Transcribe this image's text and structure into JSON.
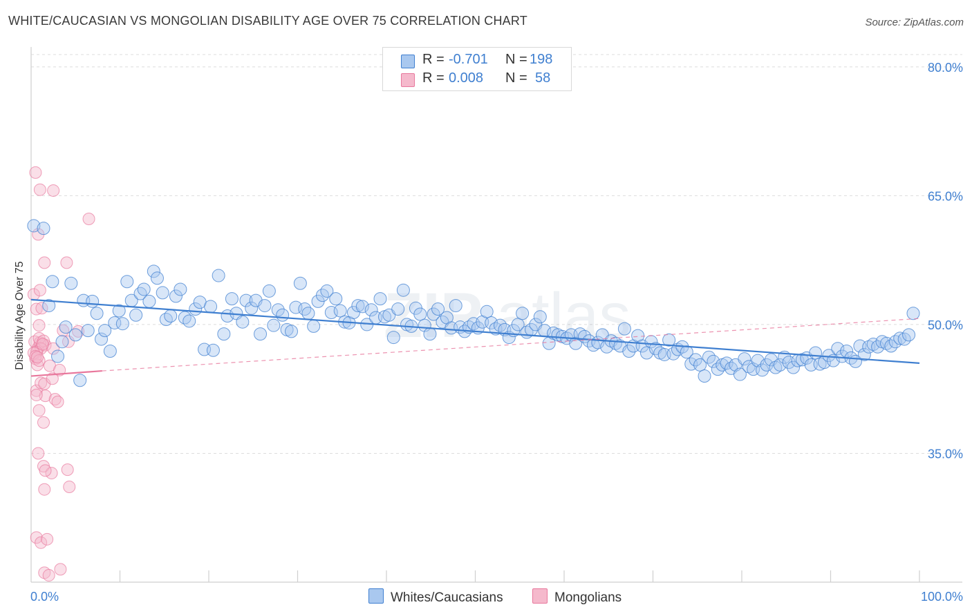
{
  "title": "WHITE/CAUCASIAN VS MONGOLIAN DISABILITY AGE OVER 75 CORRELATION CHART",
  "source": "Source: ZipAtlas.com",
  "colors": {
    "blue": "#3f7fd0",
    "blue_fill": "#a9c8ef",
    "pink": "#e8779c",
    "pink_fill": "#f5b9cc",
    "grid": "#dcdcdc"
  },
  "legend": {
    "rows": [
      {
        "r_label": "R =",
        "r_value": "-0.701",
        "n_label": "N =",
        "n_value": "198"
      },
      {
        "r_label": "R =",
        "r_value": "0.008",
        "n_label": "N =",
        "n_value": "58"
      }
    ]
  },
  "bottom_legend": {
    "series1": "Whites/Caucasians",
    "series2": "Mongolians"
  },
  "chart_data": {
    "type": "scatter",
    "ylabel": "Disability Age Over 75",
    "xlim": [
      0,
      100
    ],
    "ylim": [
      20,
      82
    ],
    "x_ticks": [
      "0.0%",
      "100.0%"
    ],
    "y_ticks": [
      {
        "value": 80,
        "label": "80.0%"
      },
      {
        "value": 65,
        "label": "65.0%"
      },
      {
        "value": 50,
        "label": "50.0%"
      },
      {
        "value": 35,
        "label": "35.0%"
      }
    ],
    "grid": "horizontal dashed",
    "series": [
      {
        "name": "Whites/Caucasians",
        "points": [
          [
            0.3,
            61.5
          ],
          [
            1.4,
            61.2
          ],
          [
            2.0,
            52.2
          ],
          [
            2.4,
            55.0
          ],
          [
            3.0,
            46.3
          ],
          [
            3.5,
            48.0
          ],
          [
            3.9,
            49.7
          ],
          [
            4.5,
            54.8
          ],
          [
            5.0,
            48.8
          ],
          [
            5.5,
            43.5
          ],
          [
            5.9,
            52.8
          ],
          [
            6.4,
            49.3
          ],
          [
            6.9,
            52.7
          ],
          [
            7.4,
            51.3
          ],
          [
            7.9,
            48.3
          ],
          [
            8.3,
            49.3
          ],
          [
            8.9,
            46.9
          ],
          [
            9.4,
            50.2
          ],
          [
            9.9,
            51.6
          ],
          [
            10.3,
            50.1
          ],
          [
            10.8,
            55.0
          ],
          [
            11.3,
            52.8
          ],
          [
            11.8,
            51.1
          ],
          [
            12.3,
            53.6
          ],
          [
            12.7,
            54.1
          ],
          [
            13.3,
            52.7
          ],
          [
            13.8,
            56.2
          ],
          [
            14.2,
            55.4
          ],
          [
            14.8,
            53.7
          ],
          [
            15.2,
            50.6
          ],
          [
            15.7,
            51.0
          ],
          [
            16.3,
            53.3
          ],
          [
            16.8,
            54.1
          ],
          [
            17.3,
            50.8
          ],
          [
            17.8,
            50.4
          ],
          [
            18.5,
            51.8
          ],
          [
            19.0,
            52.6
          ],
          [
            19.5,
            47.1
          ],
          [
            20.2,
            52.1
          ],
          [
            20.5,
            47.0
          ],
          [
            21.1,
            55.7
          ],
          [
            21.7,
            48.9
          ],
          [
            22.1,
            51.0
          ],
          [
            22.6,
            53.0
          ],
          [
            23.1,
            51.3
          ],
          [
            23.8,
            50.3
          ],
          [
            24.2,
            52.8
          ],
          [
            24.8,
            51.9
          ],
          [
            25.3,
            52.8
          ],
          [
            25.8,
            48.9
          ],
          [
            26.3,
            52.2
          ],
          [
            26.8,
            53.9
          ],
          [
            27.3,
            49.9
          ],
          [
            27.8,
            51.7
          ],
          [
            28.3,
            51.1
          ],
          [
            28.8,
            49.4
          ],
          [
            29.3,
            49.2
          ],
          [
            29.8,
            52.0
          ],
          [
            30.3,
            54.8
          ],
          [
            30.8,
            51.8
          ],
          [
            31.2,
            51.3
          ],
          [
            31.8,
            49.8
          ],
          [
            32.3,
            52.7
          ],
          [
            32.8,
            53.4
          ],
          [
            33.3,
            53.9
          ],
          [
            33.8,
            51.4
          ],
          [
            34.3,
            53.0
          ],
          [
            34.8,
            51.6
          ],
          [
            35.3,
            50.3
          ],
          [
            35.8,
            50.2
          ],
          [
            36.3,
            51.4
          ],
          [
            36.8,
            52.2
          ],
          [
            37.3,
            52.1
          ],
          [
            37.8,
            50.0
          ],
          [
            38.3,
            51.7
          ],
          [
            38.8,
            50.8
          ],
          [
            39.3,
            53.0
          ],
          [
            39.8,
            50.9
          ],
          [
            40.3,
            51.1
          ],
          [
            40.8,
            48.5
          ],
          [
            41.3,
            51.8
          ],
          [
            41.9,
            54.0
          ],
          [
            42.3,
            50.0
          ],
          [
            42.8,
            49.8
          ],
          [
            43.3,
            51.9
          ],
          [
            43.8,
            51.2
          ],
          [
            44.3,
            49.9
          ],
          [
            44.9,
            48.9
          ],
          [
            45.3,
            51.2
          ],
          [
            45.8,
            51.8
          ],
          [
            46.3,
            50.3
          ],
          [
            46.8,
            50.8
          ],
          [
            47.3,
            49.6
          ],
          [
            47.8,
            52.2
          ],
          [
            48.3,
            49.7
          ],
          [
            48.8,
            49.2
          ],
          [
            49.3,
            49.7
          ],
          [
            49.8,
            50.1
          ],
          [
            50.3,
            49.6
          ],
          [
            50.8,
            50.3
          ],
          [
            51.3,
            51.5
          ],
          [
            51.8,
            50.2
          ],
          [
            52.3,
            49.5
          ],
          [
            52.8,
            49.9
          ],
          [
            53.3,
            49.4
          ],
          [
            53.8,
            48.5
          ],
          [
            54.3,
            49.3
          ],
          [
            54.8,
            50.0
          ],
          [
            55.3,
            51.3
          ],
          [
            55.8,
            49.1
          ],
          [
            56.3,
            49.4
          ],
          [
            56.8,
            50.0
          ],
          [
            57.3,
            50.9
          ],
          [
            57.8,
            49.3
          ],
          [
            58.3,
            47.8
          ],
          [
            58.8,
            49.0
          ],
          [
            59.3,
            48.8
          ],
          [
            59.8,
            48.6
          ],
          [
            60.3,
            48.4
          ],
          [
            60.8,
            48.8
          ],
          [
            61.3,
            47.8
          ],
          [
            61.8,
            48.9
          ],
          [
            62.3,
            48.6
          ],
          [
            62.8,
            48.1
          ],
          [
            63.3,
            47.6
          ],
          [
            63.8,
            47.9
          ],
          [
            64.3,
            48.8
          ],
          [
            64.8,
            47.4
          ],
          [
            65.3,
            48.1
          ],
          [
            65.8,
            47.8
          ],
          [
            66.3,
            47.5
          ],
          [
            66.8,
            49.5
          ],
          [
            67.3,
            46.9
          ],
          [
            67.8,
            47.5
          ],
          [
            68.3,
            48.7
          ],
          [
            68.8,
            47.5
          ],
          [
            69.3,
            46.7
          ],
          [
            69.8,
            48.0
          ],
          [
            70.3,
            47.2
          ],
          [
            70.8,
            46.7
          ],
          [
            71.3,
            46.5
          ],
          [
            71.8,
            48.2
          ],
          [
            72.3,
            46.6
          ],
          [
            72.8,
            47.1
          ],
          [
            73.3,
            47.4
          ],
          [
            73.8,
            46.8
          ],
          [
            74.3,
            45.4
          ],
          [
            74.8,
            45.9
          ],
          [
            75.3,
            45.3
          ],
          [
            75.8,
            44.0
          ],
          [
            76.3,
            46.2
          ],
          [
            76.8,
            45.7
          ],
          [
            77.3,
            44.8
          ],
          [
            77.8,
            45.3
          ],
          [
            78.3,
            45.5
          ],
          [
            78.8,
            44.9
          ],
          [
            79.3,
            45.3
          ],
          [
            79.8,
            44.2
          ],
          [
            80.3,
            46.0
          ],
          [
            80.8,
            45.1
          ],
          [
            81.3,
            44.8
          ],
          [
            81.8,
            45.8
          ],
          [
            82.3,
            44.7
          ],
          [
            82.8,
            45.3
          ],
          [
            83.3,
            45.9
          ],
          [
            83.8,
            45.0
          ],
          [
            84.3,
            45.3
          ],
          [
            84.8,
            46.2
          ],
          [
            85.3,
            45.6
          ],
          [
            85.8,
            45.0
          ],
          [
            86.3,
            45.8
          ],
          [
            86.8,
            45.9
          ],
          [
            87.3,
            46.1
          ],
          [
            87.8,
            45.3
          ],
          [
            88.3,
            46.7
          ],
          [
            88.8,
            45.4
          ],
          [
            89.3,
            45.6
          ],
          [
            89.8,
            46.4
          ],
          [
            90.3,
            45.8
          ],
          [
            90.8,
            47.2
          ],
          [
            91.3,
            46.3
          ],
          [
            91.8,
            46.9
          ],
          [
            92.3,
            46.1
          ],
          [
            92.8,
            45.7
          ],
          [
            93.3,
            47.5
          ],
          [
            93.8,
            46.5
          ],
          [
            94.3,
            47.4
          ],
          [
            94.8,
            47.7
          ],
          [
            95.3,
            47.4
          ],
          [
            95.8,
            48.0
          ],
          [
            96.3,
            47.8
          ],
          [
            96.8,
            47.5
          ],
          [
            97.3,
            48.0
          ],
          [
            97.8,
            48.4
          ],
          [
            98.3,
            48.3
          ],
          [
            98.8,
            48.8
          ],
          [
            99.3,
            51.3
          ]
        ],
        "trend": {
          "x": [
            0,
            100
          ],
          "y": [
            52.9,
            45.5
          ]
        }
      },
      {
        "name": "Mongolians",
        "points": [
          [
            0.5,
            67.7
          ],
          [
            1.0,
            65.7
          ],
          [
            2.5,
            65.6
          ],
          [
            6.5,
            62.3
          ],
          [
            0.8,
            60.5
          ],
          [
            0.3,
            53.5
          ],
          [
            1.5,
            57.2
          ],
          [
            4.0,
            57.2
          ],
          [
            0.6,
            51.8
          ],
          [
            1.2,
            51.9
          ],
          [
            1.0,
            54.0
          ],
          [
            0.9,
            49.9
          ],
          [
            0.4,
            48.0
          ],
          [
            0.7,
            47.0
          ],
          [
            0.5,
            46.0
          ],
          [
            0.8,
            47.3
          ],
          [
            1.2,
            47.8
          ],
          [
            1.6,
            47.6
          ],
          [
            1.0,
            47.9
          ],
          [
            0.9,
            48.4
          ],
          [
            1.4,
            48.1
          ],
          [
            1.1,
            47.2
          ],
          [
            0.6,
            46.8
          ],
          [
            0.3,
            46.7
          ],
          [
            0.5,
            46.3
          ],
          [
            0.7,
            45.3
          ],
          [
            0.9,
            45.8
          ],
          [
            1.3,
            47.7
          ],
          [
            0.6,
            42.3
          ],
          [
            1.1,
            43.2
          ],
          [
            1.6,
            41.7
          ],
          [
            2.1,
            45.2
          ],
          [
            2.5,
            47.2
          ],
          [
            3.2,
            44.7
          ],
          [
            3.6,
            49.3
          ],
          [
            4.2,
            48.0
          ],
          [
            5.3,
            49.2
          ],
          [
            0.7,
            46.2
          ],
          [
            0.6,
            41.8
          ],
          [
            1.5,
            43.1
          ],
          [
            2.4,
            43.7
          ],
          [
            0.9,
            40.0
          ],
          [
            2.7,
            41.3
          ],
          [
            1.4,
            38.6
          ],
          [
            3.0,
            41.0
          ],
          [
            0.8,
            35.0
          ],
          [
            1.4,
            33.5
          ],
          [
            2.3,
            32.7
          ],
          [
            1.6,
            33.0
          ],
          [
            4.1,
            33.1
          ],
          [
            4.3,
            31.1
          ],
          [
            1.5,
            30.8
          ],
          [
            0.6,
            25.2
          ],
          [
            1.1,
            24.6
          ],
          [
            1.8,
            25.0
          ],
          [
            1.5,
            21.1
          ],
          [
            2.0,
            20.8
          ],
          [
            3.3,
            21.5
          ]
        ],
        "trend_solid": {
          "x": [
            0,
            8
          ],
          "y": [
            44.0,
            44.6
          ]
        },
        "trend_dashed": {
          "x": [
            8,
            100
          ],
          "y": [
            44.6,
            50.7
          ]
        }
      }
    ]
  }
}
